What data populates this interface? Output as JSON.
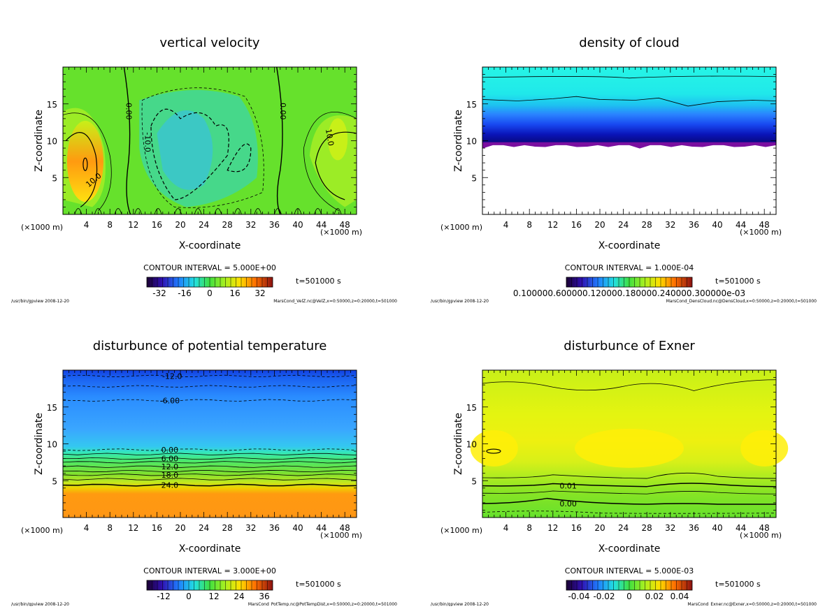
{
  "colors": {
    "green": "#66e12c",
    "lightgreen": "#9cec26",
    "yellowgreen": "#c8f018",
    "yellow": "#ffef08",
    "orange": "#ff9a10",
    "cyan": "#22f0e2",
    "skyblue": "#3aa6ff",
    "blue": "#0f46e8",
    "navy": "#0a0a9a",
    "purple": "#7a0fa0"
  },
  "chart_data": [
    {
      "type": "heatmap",
      "title": "vertical velocity",
      "xlabel": "X-coordinate",
      "ylabel": "Z-coordinate",
      "x_unit": "(×1000 m)",
      "x_unit_right": "(×1000 m)",
      "xlim": [
        0,
        50
      ],
      "ylim": [
        0,
        20
      ],
      "xticks": [
        4,
        8,
        12,
        16,
        20,
        24,
        28,
        32,
        36,
        40,
        44,
        48
      ],
      "xtick_labels": [
        "4",
        "8",
        "12",
        "16",
        "20",
        "24",
        "28",
        "32",
        "36",
        "40",
        "44",
        "48"
      ],
      "yticks": [
        5,
        10,
        15
      ],
      "ytick_labels": [
        "5",
        "10",
        "15"
      ],
      "contour_interval": "CONTOUR INTERVAL = 5.000E+00",
      "time": "t=501000 s",
      "colorbar": {
        "labels": [
          "-32",
          "-16",
          "0",
          "16",
          "32"
        ],
        "range": [
          -40,
          40
        ]
      },
      "contour_labels": [
        "0.00",
        "0.00",
        "-10.0",
        "10.0",
        "10.0"
      ],
      "footer_left": "/usr/bin/gpview  2008-12-20",
      "footer_right": "MarsCond_VelZ.nc@VelZ,x=0:50000,z=0:20000,t=501000"
    },
    {
      "type": "heatmap",
      "title": "density of cloud",
      "xlabel": "X-coordinate",
      "ylabel": "Z-coordinate",
      "x_unit": "(×1000 m)",
      "x_unit_right": "(×1000 m)",
      "xlim": [
        0,
        50
      ],
      "ylim": [
        0,
        20
      ],
      "xticks": [
        4,
        8,
        12,
        16,
        20,
        24,
        28,
        32,
        36,
        40,
        44,
        48
      ],
      "xtick_labels": [
        "4",
        "8",
        "12",
        "16",
        "20",
        "24",
        "28",
        "32",
        "36",
        "40",
        "44",
        "48"
      ],
      "yticks": [
        5,
        10,
        15
      ],
      "ytick_labels": [
        "5",
        "10",
        "15"
      ],
      "contour_interval": "CONTOUR INTERVAL = 1.000E-04",
      "time": "t=501000 s",
      "colorbar": {
        "labels": [
          "0.100000.600000.120000.180000.240000.300000e-03"
        ],
        "range": [
          0,
          0.0011
        ]
      },
      "footer_left": "/usr/bin/gpview  2008-12-20",
      "footer_right": "MarsCond_DensCloud.nc@DensCloud,x=0:50000,z=0:20000,t=501000"
    },
    {
      "type": "heatmap",
      "title": "disturbunce of potential temperature",
      "xlabel": "X-coordinate",
      "ylabel": "Z-coordinate",
      "x_unit": "(×1000 m)",
      "x_unit_right": "(×1000 m)",
      "xlim": [
        0,
        50
      ],
      "ylim": [
        0,
        20
      ],
      "xticks": [
        4,
        8,
        12,
        16,
        20,
        24,
        28,
        32,
        36,
        40,
        44,
        48
      ],
      "xtick_labels": [
        "4",
        "8",
        "12",
        "16",
        "20",
        "24",
        "28",
        "32",
        "36",
        "40",
        "44",
        "48"
      ],
      "yticks": [
        5,
        10,
        15
      ],
      "ytick_labels": [
        "5",
        "10",
        "15"
      ],
      "contour_interval": "CONTOUR INTERVAL = 3.000E+00",
      "time": "t=501000 s",
      "colorbar": {
        "labels": [
          "-12",
          "0",
          "12",
          "24",
          "36"
        ],
        "range": [
          -20,
          40
        ]
      },
      "contour_labels": [
        "-12.0",
        "-6.00",
        "0.00",
        "6.00",
        "12.0",
        "18.0",
        "24.0"
      ],
      "footer_left": "/usr/bin/gpview  2008-12-20",
      "footer_right": "MarsCond_PotTemp.nc@PotTempDist,x=0:50000,z=0:20000,t=501000"
    },
    {
      "type": "heatmap",
      "title": "disturbunce of Exner",
      "xlabel": "X-coordinate",
      "ylabel": "Z-coordinate",
      "x_unit": "(×1000 m)",
      "x_unit_right": "(×1000 m)",
      "xlim": [
        0,
        50
      ],
      "ylim": [
        0,
        20
      ],
      "xticks": [
        4,
        8,
        12,
        16,
        20,
        24,
        28,
        32,
        36,
        40,
        44,
        48
      ],
      "xtick_labels": [
        "4",
        "8",
        "12",
        "16",
        "20",
        "24",
        "28",
        "32",
        "36",
        "40",
        "44",
        "48"
      ],
      "yticks": [
        5,
        10,
        15
      ],
      "ytick_labels": [
        "5",
        "10",
        "15"
      ],
      "contour_interval": "CONTOUR INTERVAL = 5.000E-03",
      "time": "t=501000 s",
      "colorbar": {
        "labels": [
          "-0.04",
          "-0.02",
          "0",
          "0.02",
          "0.04"
        ],
        "range": [
          -0.05,
          0.05
        ]
      },
      "contour_labels": [
        "0.01",
        "0.00"
      ],
      "footer_left": "/usr/bin/gpview  2008-12-20",
      "footer_right": "MarsCond_Exner.nc@Exner,x=0:50000,z=0:20000,t=501000"
    }
  ]
}
